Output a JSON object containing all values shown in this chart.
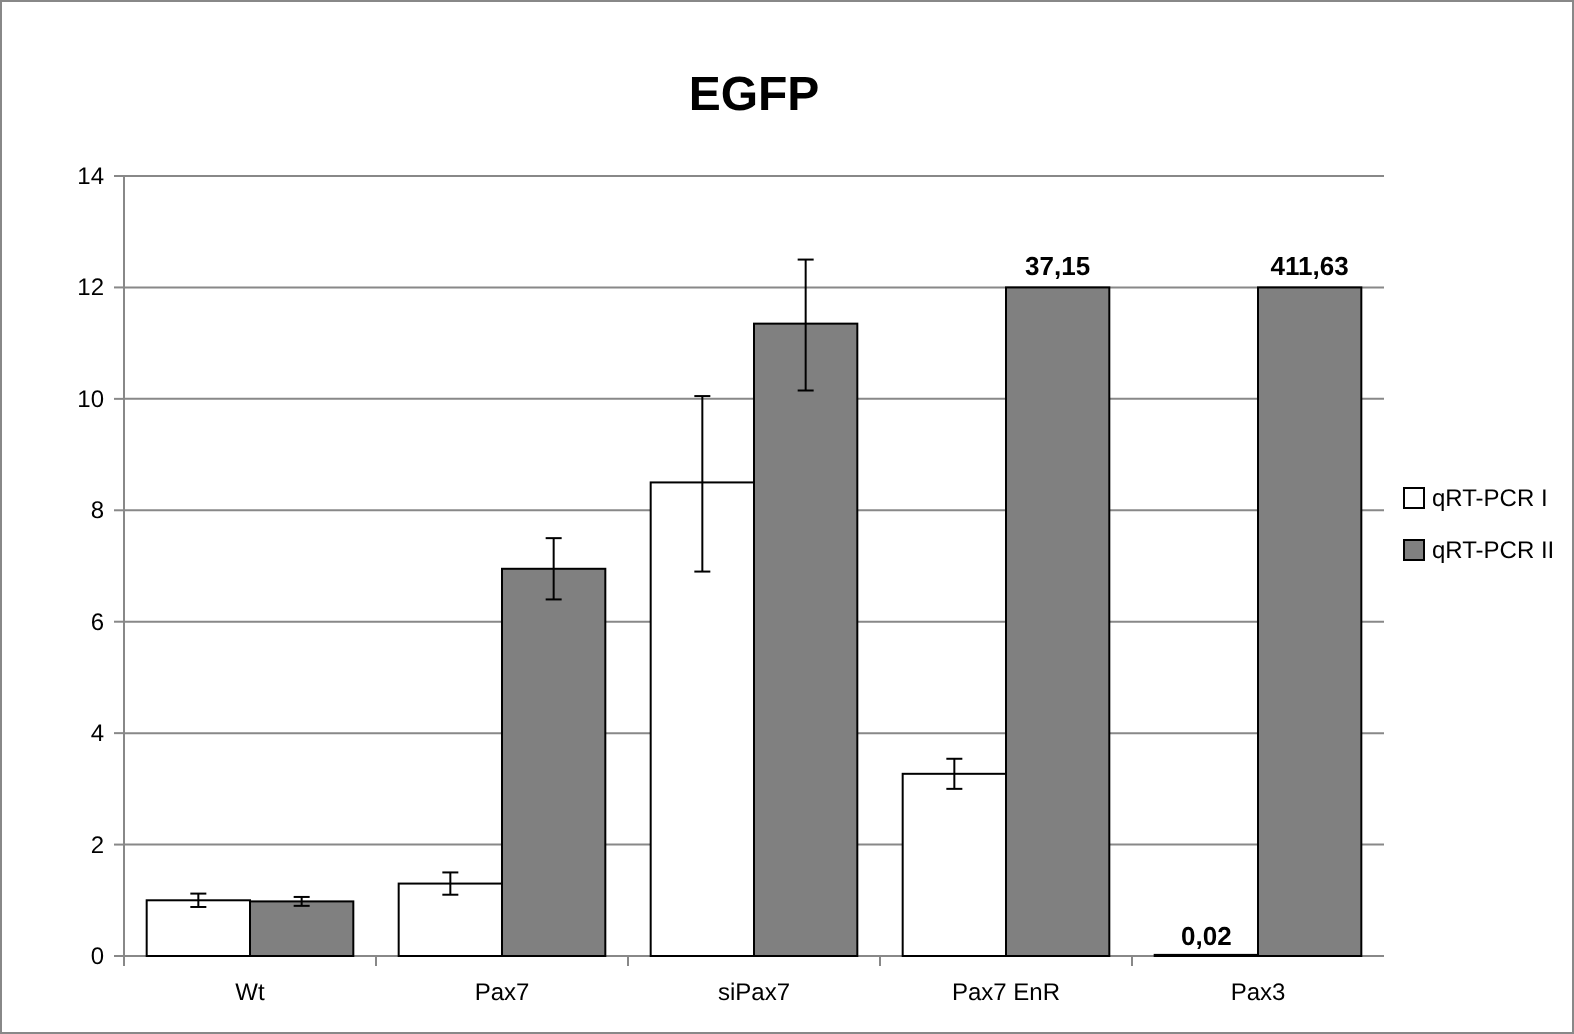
{
  "chart_data": {
    "type": "bar",
    "title": "EGFP",
    "categories": [
      "Wt",
      "Pax7",
      "siPax7",
      "Pax7 EnR",
      "Pax3"
    ],
    "series": [
      {
        "name": "qRT-PCR I",
        "color": "#ffffff",
        "values": [
          1.0,
          1.3,
          8.5,
          3.27,
          0.02
        ],
        "errors": [
          0.12,
          0.2,
          [
            6.9,
            10.05
          ],
          0.27,
          null
        ],
        "value_labels": [
          null,
          null,
          null,
          null,
          "0,02"
        ]
      },
      {
        "name": "qRT-PCR II",
        "color": "#808080",
        "values": [
          0.98,
          6.95,
          11.35,
          12,
          12
        ],
        "errors": [
          0.08,
          0.55,
          [
            10.15,
            12.5
          ],
          null,
          null
        ]
      }
    ],
    "annotations": [
      {
        "text": "37,15",
        "x": "Pax7 EnR",
        "y": 12
      },
      {
        "text": "411,63",
        "x": "Pax3",
        "y": 12
      }
    ],
    "ylim": [
      0,
      14
    ],
    "yticks": [
      0,
      2,
      4,
      6,
      8,
      10,
      12,
      14
    ],
    "grid": "y",
    "legend": "right"
  }
}
